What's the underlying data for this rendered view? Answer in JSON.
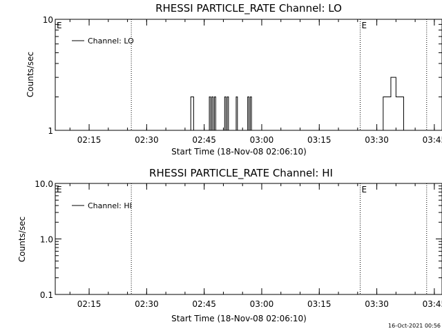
{
  "chart_data": [
    {
      "type": "line",
      "title": "RHESSI PARTICLE_RATE Channel: LO",
      "xlabel": "Start Time (18-Nov-08 02:06:10)",
      "ylabel": "Counts/sec",
      "yscale": "log",
      "ylim": [
        1,
        10
      ],
      "ytick_labels": [
        "1",
        "10"
      ],
      "xlim": [
        "02:06:10",
        "03:47:00"
      ],
      "xtick_labels": [
        "02:15",
        "02:30",
        "02:45",
        "03:00",
        "03:15",
        "03:30",
        "03:45"
      ],
      "grid": false,
      "legend_position": "top-left",
      "series": [
        {
          "name": "Channel: LO",
          "x": [
            "02:41:00",
            "02:41:30",
            "02:41:45",
            "02:42:15",
            "02:42:30",
            "02:46:00",
            "02:46:20",
            "02:46:40",
            "02:47:00",
            "02:47:20",
            "02:47:40",
            "02:48:00",
            "02:48:20",
            "02:50:00",
            "02:50:20",
            "02:50:40",
            "02:51:00",
            "02:51:20",
            "02:51:40",
            "02:53:00",
            "02:53:20",
            "02:53:40",
            "02:54:00",
            "02:56:00",
            "02:56:20",
            "02:56:40",
            "02:57:00",
            "02:57:20",
            "02:57:40",
            "03:31:00",
            "03:31:40",
            "03:32:20",
            "03:33:00",
            "03:33:40",
            "03:34:20",
            "03:35:00",
            "03:35:40",
            "03:36:20",
            "03:37:00",
            "03:37:40"
          ],
          "values": [
            1,
            2,
            2,
            1,
            1,
            1,
            2,
            1,
            2,
            1,
            2,
            1,
            1,
            1,
            2,
            1,
            2,
            1,
            1,
            1,
            2,
            1,
            1,
            1,
            2,
            1,
            2,
            1,
            1,
            1,
            2,
            2,
            2,
            3,
            3,
            2,
            2,
            2,
            1,
            1
          ]
        }
      ],
      "annotations": [
        {
          "type": "vline",
          "x": "02:26:00",
          "style": "dotted"
        },
        {
          "type": "vline",
          "x": "03:25:40",
          "style": "dotted",
          "label": "E"
        },
        {
          "type": "vline",
          "x": "03:43:00",
          "style": "dotted"
        },
        {
          "type": "text",
          "x": "02:06:10",
          "label": "E"
        }
      ]
    },
    {
      "type": "line",
      "title": "RHESSI PARTICLE_RATE Channel: HI",
      "xlabel": "Start Time (18-Nov-08 02:06:10)",
      "ylabel": "Counts/sec",
      "yscale": "log",
      "ylim": [
        0.1,
        10
      ],
      "ytick_labels": [
        "0.1",
        "1.0",
        "10.0"
      ],
      "xlim": [
        "02:06:10",
        "03:47:00"
      ],
      "xtick_labels": [
        "02:15",
        "02:30",
        "02:45",
        "03:00",
        "03:15",
        "03:30",
        "03:45"
      ],
      "grid": false,
      "legend_position": "top-left",
      "series": [
        {
          "name": "Channel: HI",
          "x": [],
          "values": []
        }
      ],
      "annotations": [
        {
          "type": "vline",
          "x": "02:26:00",
          "style": "dotted"
        },
        {
          "type": "vline",
          "x": "03:25:40",
          "style": "dotted",
          "label": "E"
        },
        {
          "type": "vline",
          "x": "03:43:00",
          "style": "dotted"
        },
        {
          "type": "text",
          "x": "02:06:10",
          "label": "E"
        }
      ]
    }
  ],
  "footer": {
    "timestamp": "16-Oct-2021 00:56"
  }
}
